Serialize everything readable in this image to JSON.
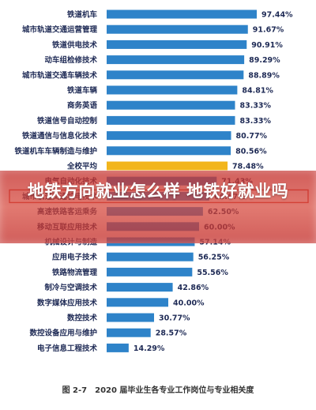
{
  "chart_data": {
    "type": "bar",
    "orientation": "horizontal",
    "categories": [
      "铁道机车",
      "城市轨道交通运营管理",
      "铁道供电技术",
      "动车组检修技术",
      "城市轨道交通车辆技术",
      "铁道车辆",
      "商务英语",
      "铁道信号自动控制",
      "铁道通信与信息化技术",
      "铁道机车车辆制造与维护",
      "全校平均",
      "电气自动化技术",
      "城市轨道交通机电技术",
      "高速铁路客运乘务",
      "移动互联应用技术",
      "机械设计与制造",
      "应用电子技术",
      "铁路物流管理",
      "制冷与空调技术",
      "数字媒体应用技术",
      "数控技术",
      "数控设备应用与维护",
      "电子信息工程技术"
    ],
    "values": [
      97.44,
      91.67,
      90.91,
      89.29,
      88.89,
      84.81,
      83.33,
      83.33,
      80.77,
      80.56,
      78.48,
      71.43,
      66.67,
      62.5,
      60.0,
      57.14,
      56.25,
      55.56,
      42.86,
      40.0,
      30.77,
      28.57,
      14.29
    ],
    "value_labels": [
      "97.44%",
      "91.67%",
      "90.91%",
      "89.29%",
      "88.89%",
      "84.81%",
      "83.33%",
      "83.33%",
      "80.77%",
      "80.56%",
      "78.48%",
      "71.43%",
      "66.67%",
      "62.50%",
      "60.00%",
      "57.14%",
      "56.25%",
      "55.56%",
      "42.86%",
      "40.00%",
      "30.77%",
      "28.57%",
      "14.29%"
    ],
    "bar_colors": [
      "#2e83c9",
      "#2e83c9",
      "#2e83c9",
      "#2e83c9",
      "#2e83c9",
      "#2e83c9",
      "#2e83c9",
      "#2e83c9",
      "#2e83c9",
      "#2e83c9",
      "#f2b51c",
      "#2e83c9",
      "#2e83c9",
      "#2e83c9",
      "#2e83c9",
      "#2e83c9",
      "#2e83c9",
      "#2e83c9",
      "#2e83c9",
      "#2e83c9",
      "#2e83c9",
      "#2e83c9",
      "#2e83c9"
    ],
    "highlight_index": 10,
    "boxed_index": 12,
    "xlim": [
      0,
      100
    ],
    "caption": "图 2-7　2020 届毕业生各专业工作岗位与专业相关度"
  },
  "overlay": {
    "headline": "地铁方向就业怎么样 地铁好就业吗",
    "background_color": "#c8302c"
  }
}
